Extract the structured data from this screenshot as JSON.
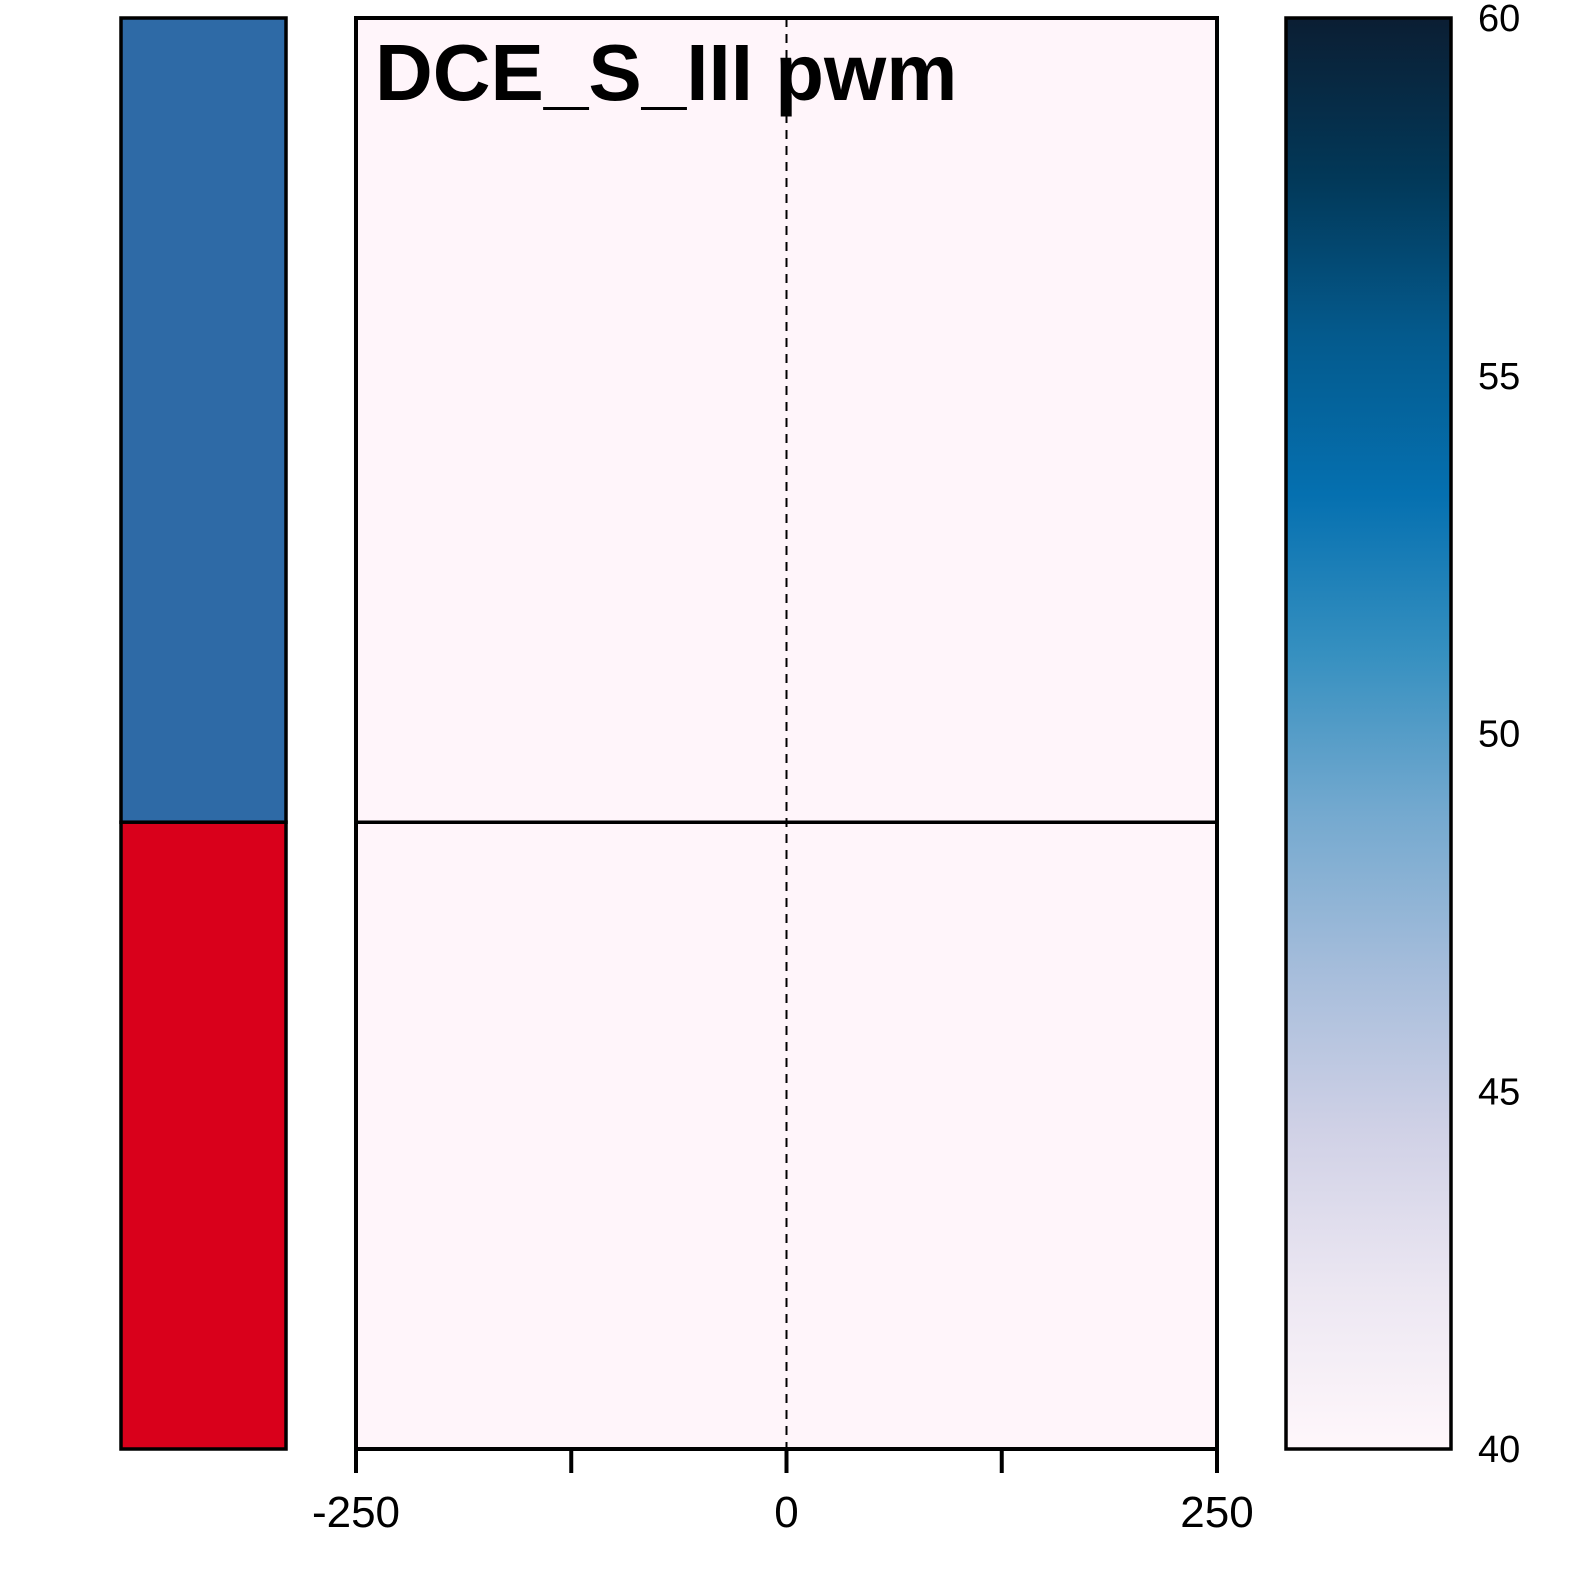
{
  "chart_data": {
    "type": "heatmap",
    "title": "DCE_S_III pwm",
    "xlabel": "",
    "ylabel": "",
    "x_ticks": [
      -250,
      -125,
      0,
      125,
      250
    ],
    "x_tick_labels": [
      "-250",
      "0",
      "250"
    ],
    "xlim": [
      -250,
      250
    ],
    "center_line": {
      "x": 0,
      "style": "dashed"
    },
    "groups": [
      {
        "color": "#2e6aa6",
        "row_fraction": 0.562,
        "value": 40
      },
      {
        "color": "#d9001b",
        "row_fraction": 0.438,
        "value": 40
      }
    ],
    "heatmap_fill": "#fff5fa",
    "colorbar": {
      "min": 40,
      "max": 60,
      "ticks": [
        "40",
        "45",
        "50",
        "55",
        "60"
      ],
      "colors": [
        "#fff7fb",
        "#ece7f2",
        "#d0d1e6",
        "#a6bddb",
        "#74a9cf",
        "#3690c0",
        "#0570b0",
        "#045a8d",
        "#023858",
        "#0b1e33"
      ]
    }
  }
}
